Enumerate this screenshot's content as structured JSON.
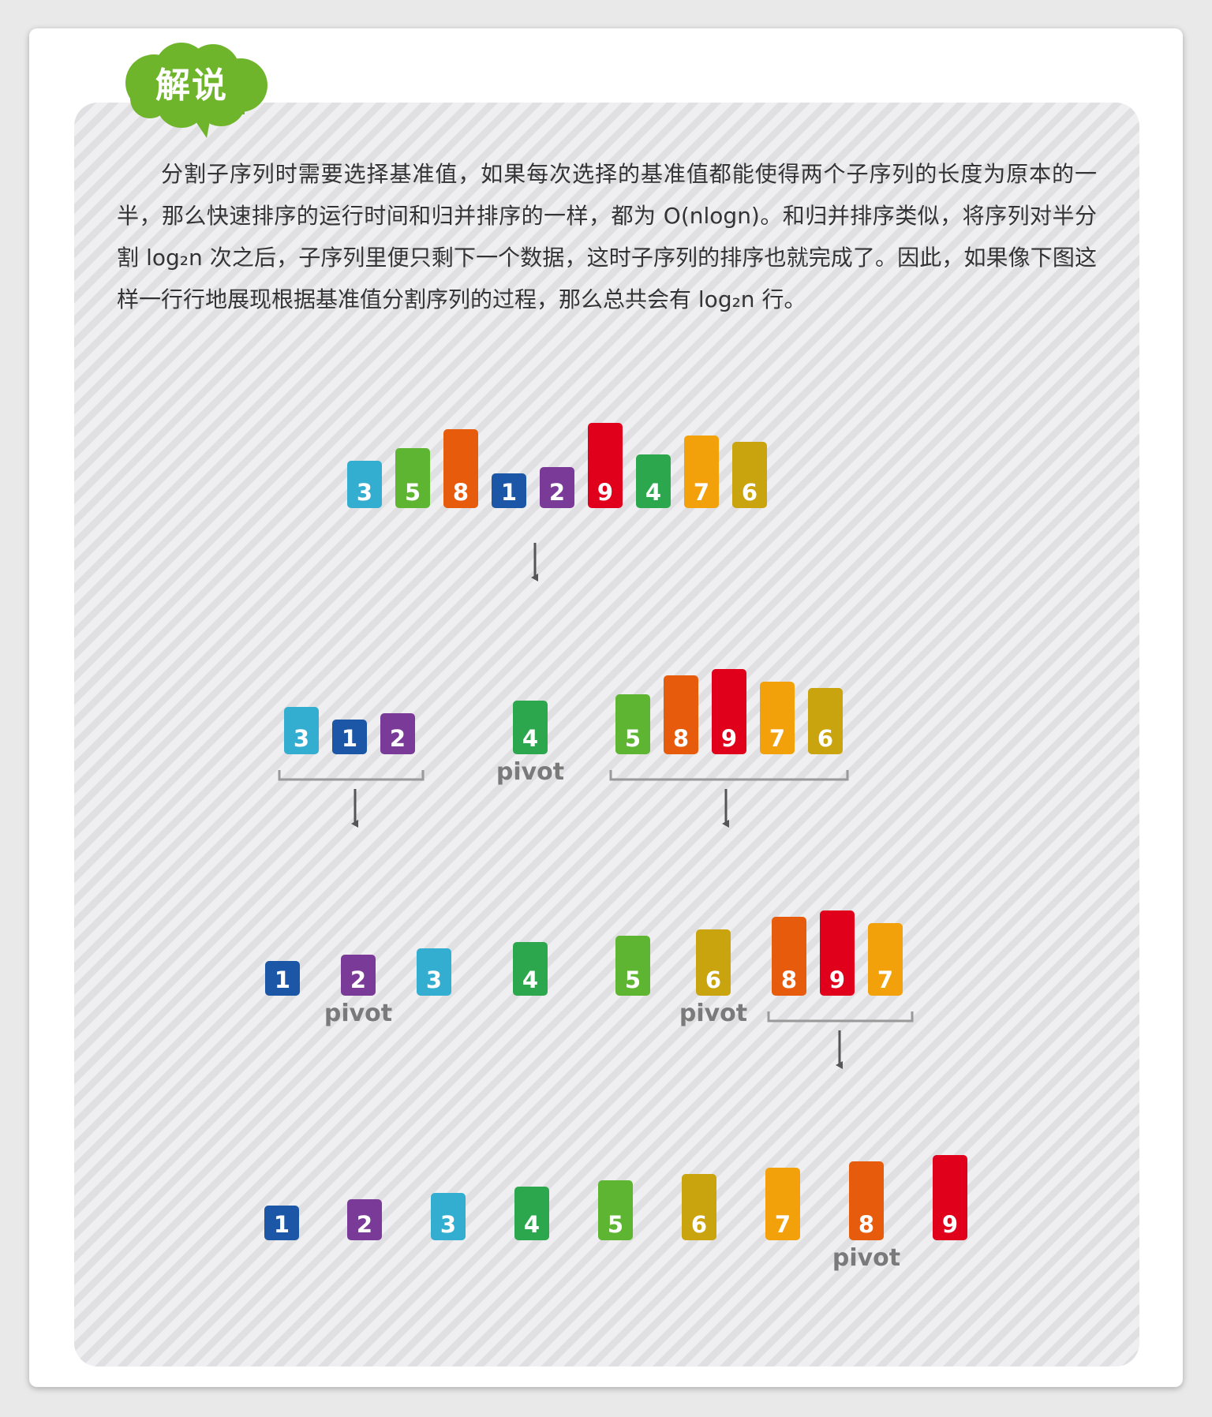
{
  "header": {
    "badge_label": "解说"
  },
  "explanation": {
    "paragraph": "分割子序列时需要选择基准值，如果每次选择的基准值都能使得两个子序列的长度为原本的一半，那么快速排序的运行时间和归并排序的一样，都为 O(nlogn)。和归并排序类似，将序列对半分割 log₂n 次之后，子序列里便只剩下一个数据，这时子序列的排序也就完成了。因此，如果像下图这样一行行地展现根据基准值分割序列的过程，那么总共会有 log₂n 行。"
  },
  "colors": {
    "1": "#1c56a6",
    "2": "#7a3b98",
    "3": "#34aed0",
    "4": "#2ca74e",
    "5": "#5db531",
    "6": "#c9a40e",
    "7": "#f2a10a",
    "8": "#e75c0c",
    "9": "#e0001b"
  },
  "diagram": {
    "pivot_label": "pivot",
    "rows": [
      {
        "values": [
          3,
          5,
          8,
          1,
          2,
          9,
          4,
          7,
          6
        ],
        "pivots": []
      },
      {
        "values": [
          3,
          1,
          2,
          4,
          5,
          8,
          9,
          7,
          6
        ],
        "pivots": [
          4
        ]
      },
      {
        "values": [
          1,
          2,
          3,
          4,
          5,
          6,
          8,
          9,
          7
        ],
        "pivots": [
          2,
          6
        ]
      },
      {
        "values": [
          1,
          2,
          3,
          4,
          5,
          6,
          7,
          8,
          9
        ],
        "pivots": [
          8
        ]
      }
    ]
  }
}
